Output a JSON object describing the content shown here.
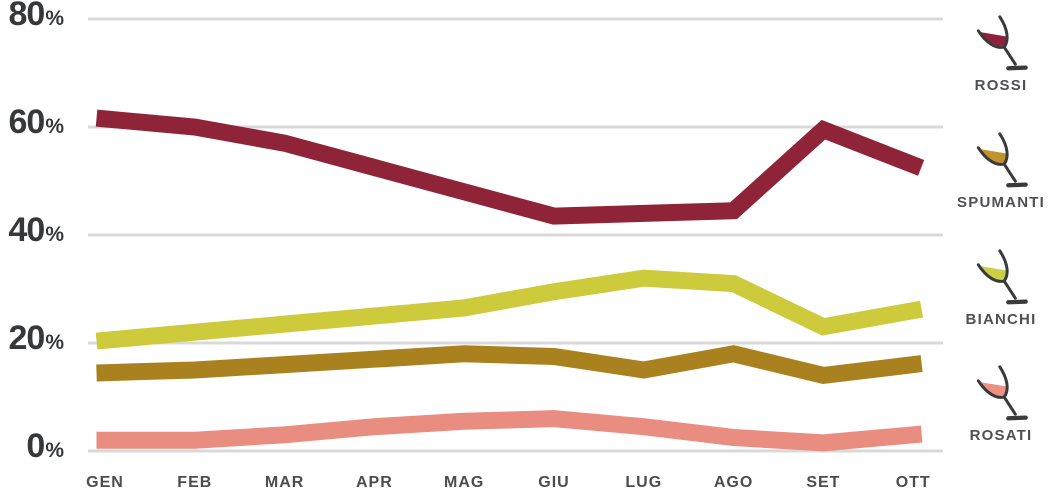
{
  "chart_data": {
    "type": "line",
    "x_categories": [
      "GEN",
      "FEB",
      "MAR",
      "APR",
      "MAG",
      "GIU",
      "LUG",
      "AGO",
      "SET",
      "OTT"
    ],
    "y_ticks": [
      {
        "label": "80%",
        "value": 80
      },
      {
        "label": "60%",
        "value": 60
      },
      {
        "label": "40%",
        "value": 40
      },
      {
        "label": "20%",
        "value": 20
      },
      {
        "label": "0%",
        "value": 0
      }
    ],
    "ylim": [
      0,
      80
    ],
    "grid": true,
    "legend_position": "right",
    "series": [
      {
        "id": "rossi",
        "name": "ROSSI",
        "color": "#8F2438",
        "values": [
          61.5,
          60,
          57,
          52.5,
          48,
          43.5,
          44,
          44.5,
          59.5,
          53
        ]
      },
      {
        "id": "bianchi",
        "name": "BIANCHI",
        "color": "#CDCB3C",
        "values": [
          20.5,
          22,
          23.5,
          25,
          26.5,
          29.5,
          32,
          31,
          23,
          26
        ]
      },
      {
        "id": "spumanti",
        "name": "SPUMANTI",
        "color": "#A9811F",
        "values": [
          14.5,
          15,
          16,
          17,
          18,
          17.5,
          15,
          18,
          14,
          16
        ]
      },
      {
        "id": "rosati",
        "name": "ROSATI",
        "color": "#E98D80",
        "values": [
          2,
          2,
          3,
          4.5,
          5.5,
          6,
          4.5,
          2.5,
          1.5,
          3
        ]
      }
    ]
  },
  "legend": {
    "items": [
      {
        "label": "ROSSI",
        "color": "#93203A"
      },
      {
        "label": "SPUMANTI",
        "color": "#C2922C"
      },
      {
        "label": "BIANCHI",
        "color": "#CCCE45"
      },
      {
        "label": "ROSATI",
        "color": "#EC9184"
      }
    ]
  },
  "colors": {
    "grid": "#D9D9D9",
    "axis_text": "#37383A",
    "month_text": "#4B4C4E",
    "legend_text": "#4F5053",
    "glass_outline": "#3A3A3B"
  }
}
